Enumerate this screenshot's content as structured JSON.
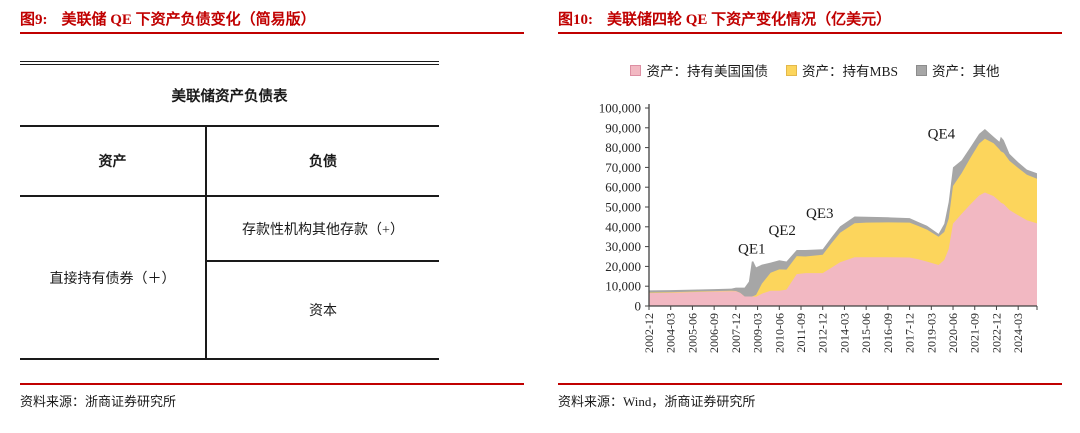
{
  "left_panel": {
    "fig_label": "图9:",
    "title": "美联储 QE 下资产负债变化（简易版）",
    "table": {
      "caption": "美联储资产负债表",
      "col_headers": [
        "资产",
        "负债"
      ],
      "asset_cell": "直接持有债券（＋）",
      "liability_cell_top": "存款性机构其他存款（+）",
      "liability_cell_bottom": "资本"
    },
    "source": "资料来源：浙商证券研究所"
  },
  "right_panel": {
    "fig_label": "图10:",
    "title": "美联储四轮 QE 下资产变化情况（亿美元）",
    "source": "资料来源：Wind，浙商证券研究所"
  },
  "colors": {
    "accent_red": "#C00000",
    "table_border": "#1A1A1A",
    "axis": "#404040",
    "text": "#262626"
  },
  "chart_data": {
    "type": "area",
    "subtype": "stacked-area",
    "title": "美联储四轮 QE 下资产变化情况（亿美元）",
    "ylabel": "亿美元",
    "xlabel": "",
    "grid": false,
    "legend_position": "top",
    "ylim": [
      0,
      100000
    ],
    "ytick_step": 10000,
    "x_start": "2002-12",
    "x_end": "2025-04",
    "xtick_labels": [
      "2002-12",
      "2004-03",
      "2005-06",
      "2006-09",
      "2007-12",
      "2009-03",
      "2010-06",
      "2011-09",
      "2012-12",
      "2014-03",
      "2015-06",
      "2016-09",
      "2017-12",
      "2019-03",
      "2020-06",
      "2021-09",
      "2022-12",
      "2024-03"
    ],
    "series": [
      {
        "name": "资产：持有美国国债",
        "color": "#F2B8C2",
        "border": "#DD8FA3"
      },
      {
        "name": "资产：持有MBS",
        "color": "#FCD55C",
        "border": "#E3B84B"
      },
      {
        "name": "资产：其他",
        "color": "#A6A6A6",
        "border": "#8C8C8C"
      }
    ],
    "columns": [
      "date",
      "treasuries",
      "mbs",
      "other"
    ],
    "points": [
      [
        "2002-12",
        6500,
        250,
        1150
      ],
      [
        "2004-03",
        6700,
        250,
        1100
      ],
      [
        "2005-06",
        7000,
        250,
        1050
      ],
      [
        "2006-09",
        7300,
        250,
        1000
      ],
      [
        "2007-09",
        7500,
        250,
        1050
      ],
      [
        "2007-12",
        7400,
        200,
        1700
      ],
      [
        "2008-03",
        6600,
        0,
        2700
      ],
      [
        "2008-06",
        4800,
        0,
        4500
      ],
      [
        "2008-09",
        4800,
        0,
        7500
      ],
      [
        "2008-11",
        4800,
        0,
        17600
      ],
      [
        "2008-12",
        4800,
        200,
        17600
      ],
      [
        "2009-02",
        4700,
        900,
        13900
      ],
      [
        "2009-06",
        6200,
        5100,
        9600
      ],
      [
        "2009-12",
        7700,
        9100,
        5100
      ],
      [
        "2010-06",
        7700,
        10800,
        4600
      ],
      [
        "2010-11",
        8300,
        10100,
        4100
      ],
      [
        "2011-06",
        16100,
        9100,
        3100
      ],
      [
        "2011-12",
        16600,
        8400,
        3300
      ],
      [
        "2012-12",
        16600,
        9300,
        2800
      ],
      [
        "2013-06",
        19300,
        12300,
        3000
      ],
      [
        "2013-12",
        22100,
        14900,
        3200
      ],
      [
        "2014-10",
        24600,
        17200,
        3400
      ],
      [
        "2015-06",
        24600,
        17500,
        3000
      ],
      [
        "2016-09",
        24600,
        17600,
        2600
      ],
      [
        "2017-12",
        24500,
        17600,
        2300
      ],
      [
        "2018-06",
        23600,
        16800,
        2000
      ],
      [
        "2018-12",
        22400,
        16200,
        1900
      ],
      [
        "2019-08",
        20700,
        14300,
        1400
      ],
      [
        "2019-12",
        23300,
        14100,
        4100
      ],
      [
        "2020-03",
        28800,
        15300,
        8400
      ],
      [
        "2020-06",
        41600,
        19000,
        9400
      ],
      [
        "2020-12",
        46600,
        20500,
        6500
      ],
      [
        "2021-06",
        51300,
        23500,
        5400
      ],
      [
        "2021-12",
        55800,
        26200,
        4900
      ],
      [
        "2022-04",
        57300,
        27200,
        4900
      ],
      [
        "2022-10",
        55500,
        26700,
        3300
      ],
      [
        "2023-02",
        53000,
        26100,
        3900
      ],
      [
        "2023-03",
        52200,
        26000,
        7300
      ],
      [
        "2023-05",
        51500,
        25800,
        6500
      ],
      [
        "2023-09",
        48500,
        24800,
        3500
      ],
      [
        "2024-03",
        45800,
        23900,
        2900
      ],
      [
        "2024-09",
        43300,
        23000,
        2600
      ],
      [
        "2025-04",
        41700,
        22600,
        2700
      ]
    ],
    "annotations": [
      {
        "text": "QE1",
        "date": "2008-11",
        "value": 26500
      },
      {
        "text": "QE2",
        "date": "2010-08",
        "value": 35800
      },
      {
        "text": "QE3",
        "date": "2012-10",
        "value": 44500
      },
      {
        "text": "QE4",
        "date": "2019-10",
        "value": 84500
      }
    ]
  }
}
